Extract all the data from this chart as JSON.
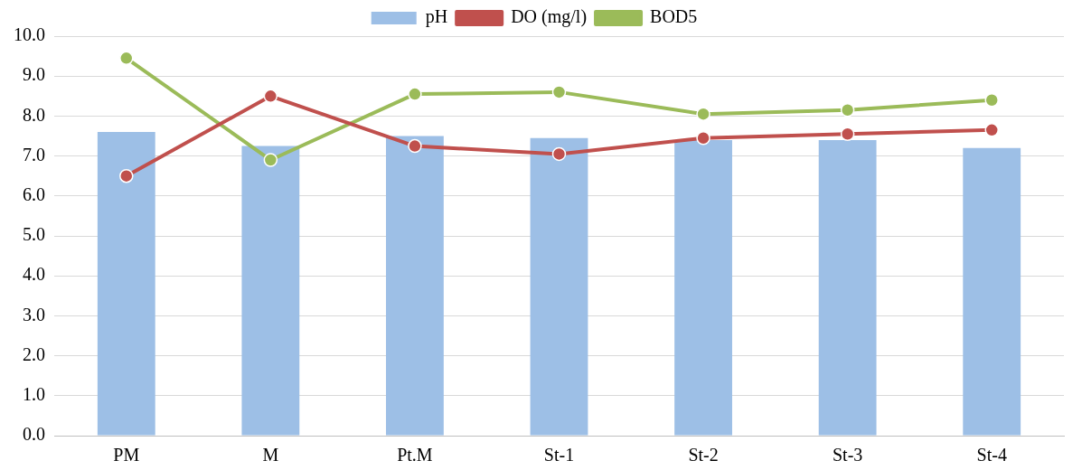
{
  "chart_data": {
    "type": "bar",
    "categories": [
      "PM",
      "M",
      "Pt.M",
      "St-1",
      "St-2",
      "St-3",
      "St-4"
    ],
    "series": [
      {
        "name": "pH",
        "color": "#9dbfe6",
        "values": [
          7.6,
          7.25,
          7.5,
          7.45,
          7.4,
          7.4,
          7.2
        ]
      },
      {
        "name": "DO (mg/l)",
        "type": "line",
        "color": "#c0504d",
        "values": [
          6.5,
          8.5,
          7.25,
          7.05,
          7.45,
          7.55,
          7.65
        ]
      },
      {
        "name": "BOD5",
        "type": "line",
        "color": "#9bbb59",
        "values": [
          9.45,
          6.9,
          8.55,
          8.6,
          8.05,
          8.15,
          8.4
        ]
      }
    ],
    "ylim": [
      0,
      10
    ],
    "yticks": [
      {
        "value": 0,
        "label": "0.0"
      },
      {
        "value": 1,
        "label": "1.0"
      },
      {
        "value": 2,
        "label": "2.0"
      },
      {
        "value": 3,
        "label": "3.0"
      },
      {
        "value": 4,
        "label": "4.0"
      },
      {
        "value": 5,
        "label": "5.0"
      },
      {
        "value": 6,
        "label": "6.0"
      },
      {
        "value": 7,
        "label": "7.0"
      },
      {
        "value": 8,
        "label": "8.0"
      },
      {
        "value": 9,
        "label": "9.0"
      },
      {
        "value": 10,
        "label": "10.0"
      }
    ],
    "grid": "y",
    "legend": "top",
    "marker": "circle"
  }
}
